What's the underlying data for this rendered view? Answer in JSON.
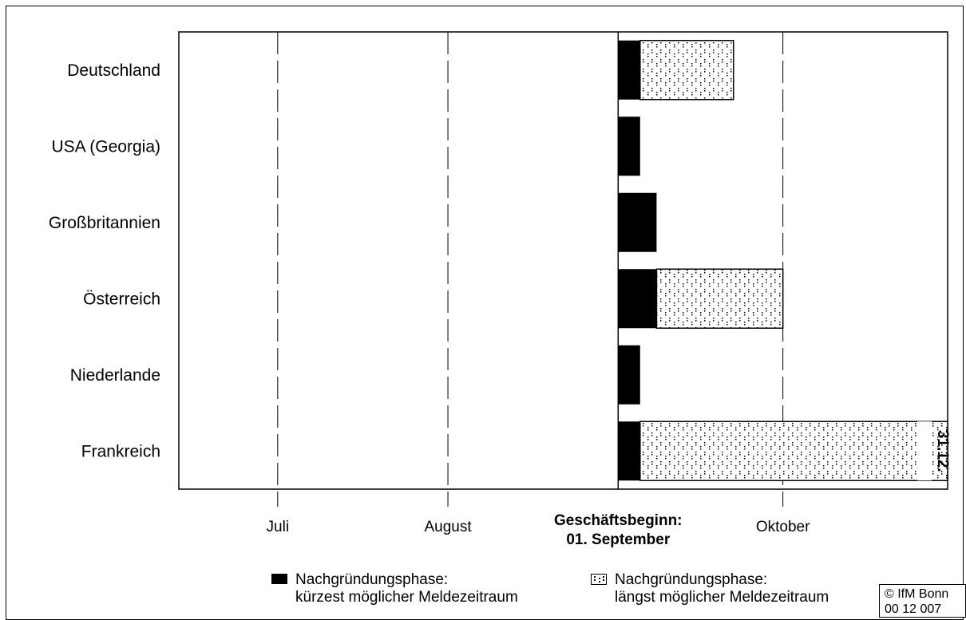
{
  "chart_data": {
    "type": "bar",
    "orientation": "horizontal",
    "stacked": true,
    "categories": [
      "Deutschland",
      "USA (Georgia)",
      "Großbritannien",
      "Österreich",
      "Niederlande",
      "Frankreich"
    ],
    "x_axis": {
      "ticks": [
        {
          "date": "07-01",
          "label": "Juli",
          "bold": false
        },
        {
          "date": "08-01",
          "label": "August",
          "bold": false
        },
        {
          "date": "09-01",
          "label": "Geschäftsbeginn:\n01. September",
          "bold": true
        },
        {
          "date": "10-01",
          "label": "Oktober",
          "bold": false
        }
      ],
      "start": "06-13",
      "end": "10-31"
    },
    "series": [
      {
        "name": "Nachgründungsphase: kürzest möglicher Meldezeitraum",
        "style": "solid",
        "color": "#000000",
        "intervals": [
          {
            "from": "09-01",
            "to": "09-05"
          },
          {
            "from": "09-01",
            "to": "09-05"
          },
          {
            "from": "09-01",
            "to": "09-08"
          },
          {
            "from": "09-01",
            "to": "09-08"
          },
          {
            "from": "09-01",
            "to": "09-05"
          },
          {
            "from": "09-01",
            "to": "09-05"
          }
        ]
      },
      {
        "name": "Nachgründungsphase: längst möglicher Meldezeitraum",
        "style": "dotted",
        "color": "#ffffff",
        "intervals": [
          {
            "from": "09-05",
            "to": "09-22"
          },
          null,
          null,
          {
            "from": "09-08",
            "to": "10-01"
          },
          null,
          {
            "from": "09-05",
            "to": "10-31"
          }
        ]
      }
    ],
    "annotations": [
      {
        "category": "Frankreich",
        "text": "31.12."
      }
    ],
    "grid": {
      "vertical_dashed": true
    }
  },
  "legend": {
    "short": {
      "line1": "Nachgründungsphase:",
      "line2": "kürzest möglicher Meldezeitraum"
    },
    "long": {
      "line1": "Nachgründungsphase:",
      "line2": "längst möglicher Meldezeitraum"
    }
  },
  "copyright": {
    "line1": "© IfM Bonn",
    "line2": "00 12 007"
  }
}
